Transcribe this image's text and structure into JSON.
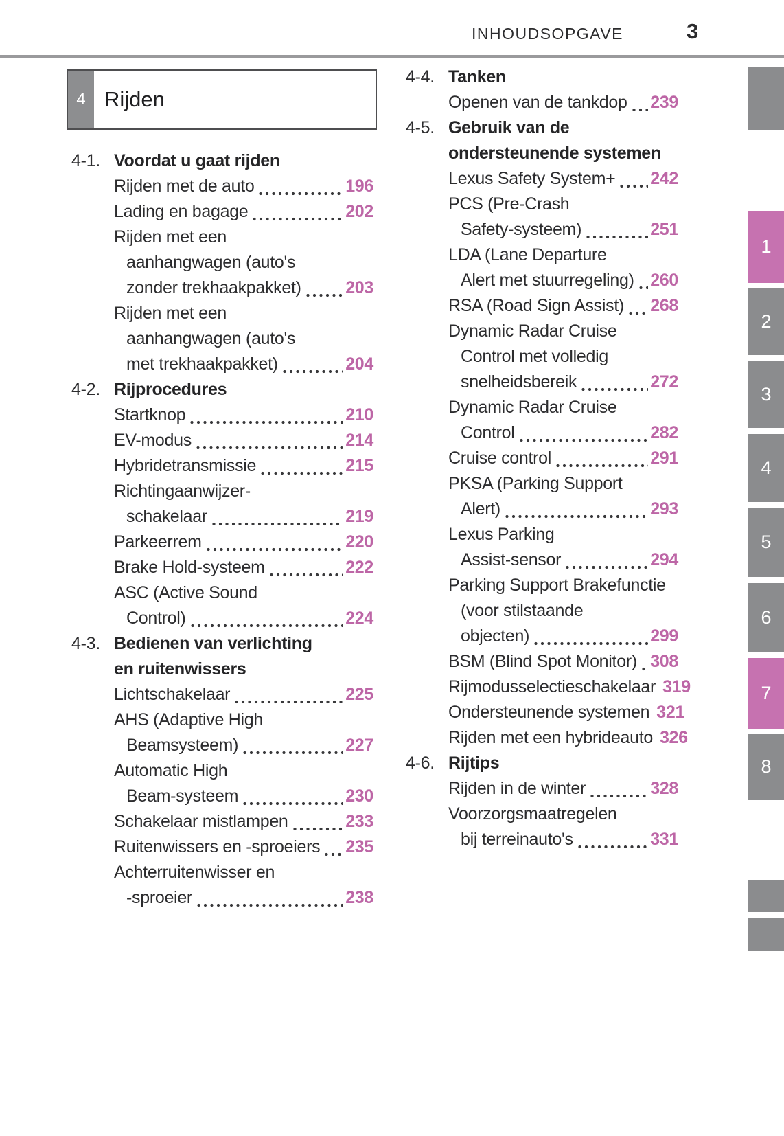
{
  "header": {
    "title": "INHOUDSOPGAVE",
    "page_number": "3"
  },
  "chapter_box": {
    "number": "4",
    "title": "Rijden"
  },
  "columns": {
    "left": {
      "sections": [
        {
          "number": "4-1.",
          "title_lines": [
            "Voordat u gaat rijden"
          ],
          "items": [
            {
              "lines": [
                "Rijden met de auto"
              ],
              "page": "196"
            },
            {
              "lines": [
                "Lading en bagage"
              ],
              "page": "202"
            },
            {
              "lines": [
                "Rijden met een",
                "aanhangwagen (auto's",
                "zonder trekhaakpakket)"
              ],
              "page": "203"
            },
            {
              "lines": [
                "Rijden met een",
                "aanhangwagen (auto's",
                "met trekhaakpakket)"
              ],
              "page": "204"
            }
          ]
        },
        {
          "number": "4-2.",
          "title_lines": [
            "Rijprocedures"
          ],
          "items": [
            {
              "lines": [
                "Startknop"
              ],
              "page": "210"
            },
            {
              "lines": [
                "EV-modus"
              ],
              "page": "214"
            },
            {
              "lines": [
                "Hybridetransmissie"
              ],
              "page": "215"
            },
            {
              "lines": [
                "Richtingaanwijzer-",
                "schakelaar"
              ],
              "page": "219"
            },
            {
              "lines": [
                "Parkeerrem"
              ],
              "page": "220"
            },
            {
              "lines": [
                "Brake Hold-systeem"
              ],
              "page": "222"
            },
            {
              "lines": [
                "ASC (Active Sound",
                "Control)"
              ],
              "page": "224"
            }
          ]
        },
        {
          "number": "4-3.",
          "title_lines": [
            "Bedienen van verlichting",
            "en ruitenwissers"
          ],
          "items": [
            {
              "lines": [
                "Lichtschakelaar"
              ],
              "page": "225"
            },
            {
              "lines": [
                "AHS (Adaptive High",
                "Beamsysteem)"
              ],
              "page": "227"
            },
            {
              "lines": [
                "Automatic High",
                "Beam-systeem"
              ],
              "page": "230"
            },
            {
              "lines": [
                "Schakelaar mistlampen"
              ],
              "page": "233"
            },
            {
              "lines": [
                "Ruitenwissers en -sproeiers"
              ],
              "page": "235"
            },
            {
              "lines": [
                "Achterruitenwisser en",
                "-sproeier"
              ],
              "page": "238"
            }
          ]
        }
      ]
    },
    "right": {
      "sections": [
        {
          "number": "4-4.",
          "title_lines": [
            "Tanken"
          ],
          "items": [
            {
              "lines": [
                "Openen van de tankdop"
              ],
              "page": "239"
            }
          ]
        },
        {
          "number": "4-5.",
          "title_lines": [
            "Gebruik van de",
            "ondersteunende systemen"
          ],
          "items": [
            {
              "lines": [
                "Lexus Safety System+"
              ],
              "page": "242"
            },
            {
              "lines": [
                "PCS (Pre-Crash",
                "Safety-systeem)"
              ],
              "page": "251"
            },
            {
              "lines": [
                "LDA (Lane Departure",
                "Alert met stuurregeling)"
              ],
              "page": "260"
            },
            {
              "lines": [
                "RSA (Road Sign Assist)"
              ],
              "page": "268"
            },
            {
              "lines": [
                "Dynamic Radar Cruise",
                "Control met volledig",
                "snelheidsbereik"
              ],
              "page": "272"
            },
            {
              "lines": [
                "Dynamic Radar Cruise",
                "Control"
              ],
              "page": "282"
            },
            {
              "lines": [
                "Cruise control"
              ],
              "page": "291"
            },
            {
              "lines": [
                "PKSA (Parking Support",
                "Alert)"
              ],
              "page": "293"
            },
            {
              "lines": [
                "Lexus Parking",
                "Assist-sensor"
              ],
              "page": "294"
            },
            {
              "lines": [
                "Parking Support Brakefunctie",
                "(voor stilstaande",
                "objecten)"
              ],
              "page": "299"
            },
            {
              "lines": [
                "BSM (Blind Spot Monitor)"
              ],
              "page": "308"
            },
            {
              "lines": [
                "Rijmodusselectieschakelaar"
              ],
              "page": "319"
            },
            {
              "lines": [
                "Ondersteunende systemen"
              ],
              "page": "321"
            },
            {
              "lines": [
                "Rijden met een hybrideauto"
              ],
              "page": "326"
            }
          ]
        },
        {
          "number": "4-6.",
          "title_lines": [
            "Rijtips"
          ],
          "items": [
            {
              "lines": [
                "Rijden in de winter"
              ],
              "page": "328"
            },
            {
              "lines": [
                "Voorzorgsmaatregelen",
                "bij terreinauto's"
              ],
              "page": "331"
            }
          ]
        }
      ]
    }
  },
  "side_tabs": [
    {
      "label": "",
      "active": false
    },
    {
      "label": "1",
      "active": true
    },
    {
      "label": "2",
      "active": false
    },
    {
      "label": "3",
      "active": false
    },
    {
      "label": "4",
      "active": false
    },
    {
      "label": "5",
      "active": false
    },
    {
      "label": "6",
      "active": false
    },
    {
      "label": "7",
      "active": true
    },
    {
      "label": "8",
      "active": false
    },
    {
      "label": "",
      "active": false
    },
    {
      "label": "",
      "active": false
    }
  ],
  "colors": {
    "page_number_pink": "#bd66a6",
    "tab_pink": "#c672b0",
    "tab_gray": "#8b8c8e",
    "chapter_tab_gray": "#8d8e90",
    "rule_gray": "#9a9a9c",
    "text": "#2c2c2e"
  }
}
